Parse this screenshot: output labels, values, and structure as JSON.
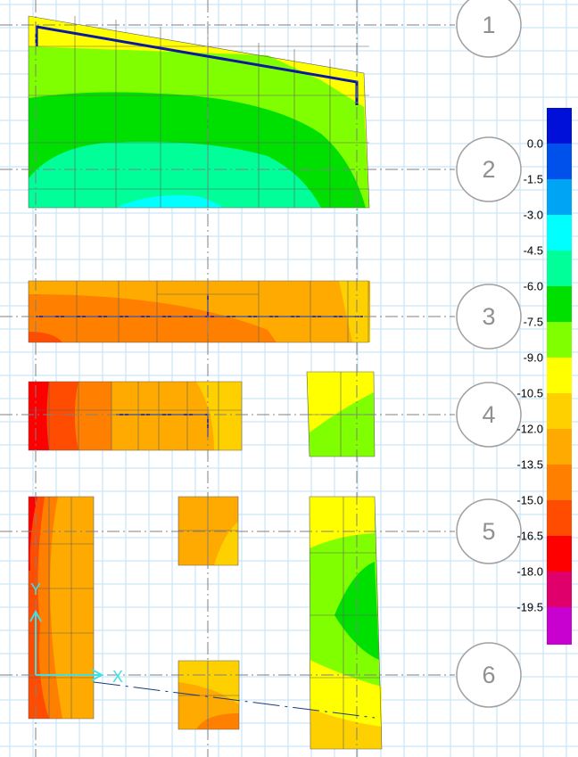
{
  "grid_bubbles": [
    "1",
    "2",
    "3",
    "4",
    "5",
    "6"
  ],
  "legend": {
    "labels": [
      "0.0",
      "-1.5",
      "-3.0",
      "-4.5",
      "-6.0",
      "-7.5",
      "-9.0",
      "-10.5",
      "-12.0",
      "-13.5",
      "-15.0",
      "-16.5",
      "-18.0",
      "-19.5"
    ],
    "colors": [
      "#0010d8",
      "#0050ec",
      "#00a4f4",
      "#00ffff",
      "#00ff98",
      "#00e000",
      "#80ff00",
      "#ffff00",
      "#ffd000",
      "#ffaa00",
      "#ff8000",
      "#ff4c00",
      "#ff0000",
      "#e0006c",
      "#c800d0"
    ]
  },
  "axes": {
    "y": "Y",
    "x": "X"
  }
}
